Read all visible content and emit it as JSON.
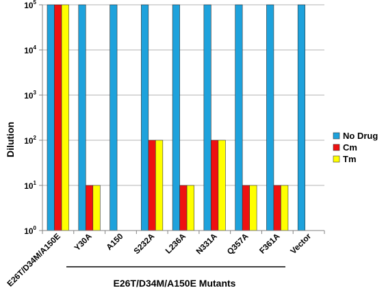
{
  "chart_data": {
    "type": "bar",
    "ylabel": "Dilution",
    "xlabel": "E26T/D34M/A150E Mutants",
    "y_scale": "log",
    "ylim": [
      1,
      100000
    ],
    "y_ticks": [
      {
        "value": 1,
        "base": "10",
        "exp": "0"
      },
      {
        "value": 10,
        "base": "10",
        "exp": "1"
      },
      {
        "value": 100,
        "base": "10",
        "exp": "2"
      },
      {
        "value": 1000,
        "base": "10",
        "exp": "3"
      },
      {
        "value": 10000,
        "base": "10",
        "exp": "4"
      },
      {
        "value": 100000,
        "base": "10",
        "exp": "5"
      }
    ],
    "grid": true,
    "legend_position": "right",
    "categories": [
      "E26T/D34M/A150E",
      "Y30A",
      "A150",
      "S232A",
      "L236A",
      "N331A",
      "Q357A",
      "F361A",
      "Vector"
    ],
    "series": [
      {
        "name": "No Drug",
        "color": "#1ea2dc",
        "values": [
          100000,
          100000,
          100000,
          100000,
          100000,
          100000,
          100000,
          100000,
          100000
        ]
      },
      {
        "name": "Cm",
        "color": "#ee1111",
        "values": [
          100000,
          10,
          null,
          100,
          10,
          100,
          10,
          10,
          null
        ]
      },
      {
        "name": "Tm",
        "color": "#ffff00",
        "values": [
          100000,
          10,
          null,
          100,
          10,
          100,
          10,
          10,
          null
        ]
      }
    ]
  }
}
